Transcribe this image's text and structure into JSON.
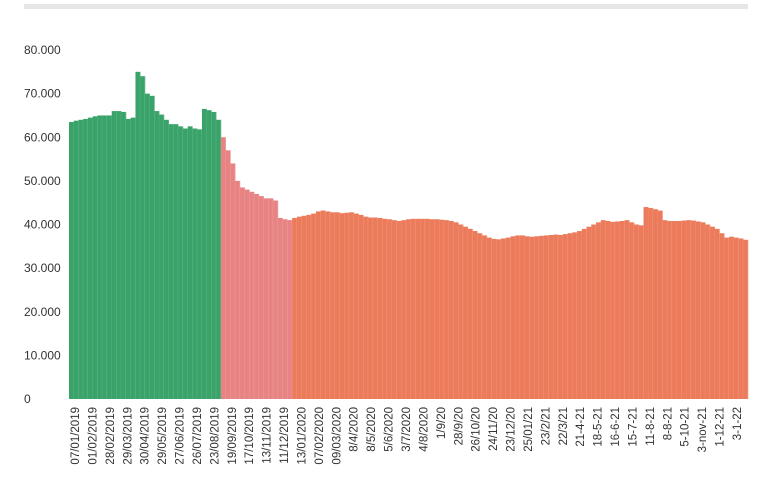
{
  "colors": {
    "green": "#3aa36a",
    "red": "#ec7b5b",
    "pink": "#e88384",
    "background": "#ffffff",
    "bar_top": "#e6e6e6"
  },
  "chart_data": {
    "type": "bar",
    "title": "",
    "xlabel": "",
    "ylabel": "",
    "ylim": [
      0,
      80000
    ],
    "grid": false,
    "legend": "none",
    "y_ticks": [
      {
        "value": 0,
        "label": "0"
      },
      {
        "value": 10000,
        "label": "10.000"
      },
      {
        "value": 20000,
        "label": "20.000"
      },
      {
        "value": 30000,
        "label": "30.000"
      },
      {
        "value": 40000,
        "label": "40.000"
      },
      {
        "value": 50000,
        "label": "50.000"
      },
      {
        "value": 60000,
        "label": "60.000"
      },
      {
        "value": 70000,
        "label": "70.000"
      },
      {
        "value": 80000,
        "label": "80.000"
      }
    ],
    "x_tick_labels": [
      "07/01/2019",
      "01/02/2019",
      "28/02/2019",
      "29/03/2019",
      "30/04/2019",
      "29/05/2019",
      "27/06/2019",
      "26/07/2019",
      "23/08/2019",
      "19/09/2019",
      "17/10/2019",
      "13/11/2019",
      "11/12/2019",
      "13/01/2020",
      "07/02/2020",
      "09/03/2020",
      "8/4/2020",
      "8/5/2020",
      "5/6/2020",
      "3/7/2020",
      "4/8/2020",
      "1/9/20",
      "28/9/20",
      "26/10/20",
      "24/11/20",
      "23/12/20",
      "25/01/21",
      "23/2/21",
      "22/3/21",
      "21-4-21",
      "18-5-21",
      "16-6-21",
      "15-7-21",
      "11-8-21",
      "8-8-21",
      "5-10-21",
      "3-nov-21",
      "1-12-21",
      "3-1-22"
    ],
    "series": [
      {
        "color_key": "green",
        "start_week": 0,
        "values": [
          63500,
          63800,
          64000,
          64200,
          64500,
          64800,
          65000,
          65000,
          65000,
          66000,
          66000,
          65800,
          64200,
          64500,
          75000,
          74000,
          70000,
          69500,
          66000,
          65200,
          64000,
          63000,
          63000,
          62500,
          62000,
          62500,
          62000,
          61800,
          66500,
          66200,
          65800,
          64000
        ]
      },
      {
        "color_key": "pink",
        "start_week": 32,
        "values": [
          60000,
          57000,
          54000,
          50000,
          48500,
          48000,
          47500,
          47000,
          46500,
          46000,
          46000,
          45500,
          41500,
          41200,
          41000
        ]
      },
      {
        "color_key": "red",
        "start_week": 47,
        "values": [
          41500,
          41800,
          42000,
          42200,
          42500,
          43000,
          43200,
          43000,
          42800,
          42800,
          42600,
          42700,
          42800,
          42500,
          42200,
          41800,
          41600,
          41600,
          41500,
          41300,
          41200,
          41000,
          40800,
          41000,
          41200,
          41300,
          41300,
          41300,
          41300,
          41200,
          41200,
          41100,
          41000,
          40800,
          40500,
          40000,
          39500,
          39000,
          38500,
          38000,
          37500,
          37000,
          36700,
          36600,
          36800,
          37000,
          37300,
          37500,
          37500,
          37300,
          37200,
          37300,
          37400,
          37500,
          37600,
          37700,
          37600,
          37800,
          38000,
          38200,
          38500,
          39000,
          39500,
          40000,
          40500,
          41000,
          40800,
          40600,
          40700,
          40800,
          41000,
          40500,
          40000,
          39800,
          44000,
          43800,
          43500,
          43200,
          41000,
          40800,
          40800,
          40800,
          40900,
          41000,
          40900,
          40700,
          40500,
          40000,
          39500,
          39000,
          38000,
          37000,
          37200,
          37000,
          36800,
          36500
        ]
      }
    ]
  }
}
